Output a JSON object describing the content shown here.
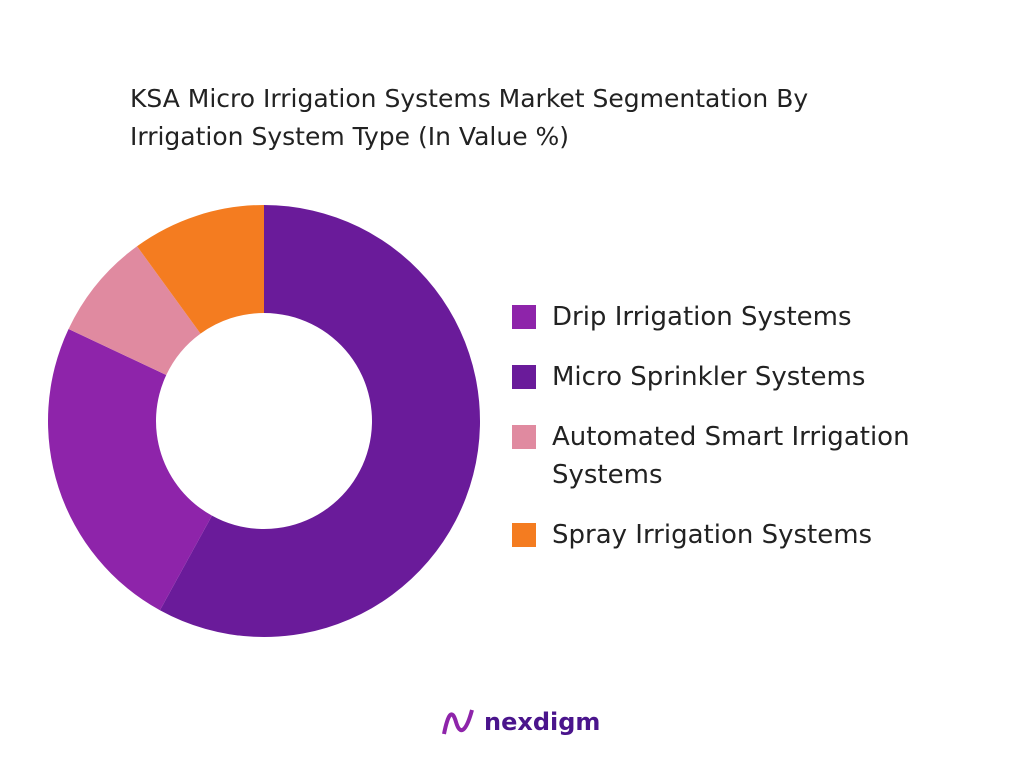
{
  "chart_data": {
    "type": "donut",
    "title": "KSA Micro Irrigation Systems Market Segmentation By Irrigation System Type (In Value %)",
    "categories": [
      "Drip Irrigation Systems",
      "Micro Sprinkler Systems",
      "Automated Smart Irrigation Systems",
      "Spray Irrigation Systems"
    ],
    "values": [
      24,
      58,
      8,
      10
    ],
    "colors": [
      "#8e24aa",
      "#6a1b9a",
      "#e08aa0",
      "#f47c20"
    ],
    "legend": "right"
  },
  "brand": "nexdigm"
}
